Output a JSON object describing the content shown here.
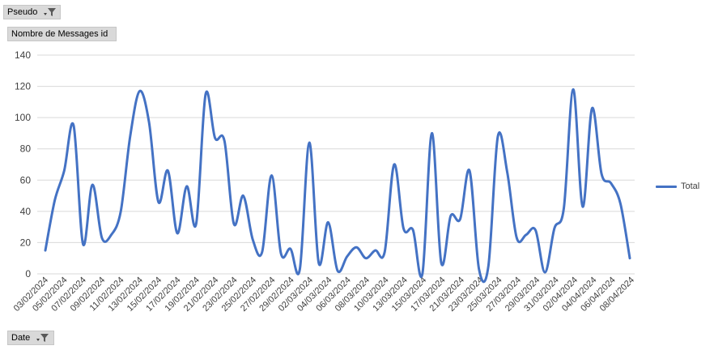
{
  "filters": {
    "pseudo_label": "Pseudo",
    "measure_label": "Nombre de Messages id",
    "date_label": "Date"
  },
  "chart_data": {
    "type": "line",
    "title": "",
    "xlabel": "",
    "ylabel": "",
    "ylim": [
      0,
      140
    ],
    "yticks": [
      0,
      20,
      40,
      60,
      80,
      100,
      120,
      140
    ],
    "grid": true,
    "legend_position": "right",
    "line_color": "#4472c4",
    "x_tick_labels": [
      "03/02/2024",
      "05/02/2024",
      "07/02/2024",
      "09/02/2024",
      "11/02/2024",
      "13/02/2024",
      "15/02/2024",
      "17/02/2024",
      "19/02/2024",
      "21/02/2024",
      "23/02/2024",
      "25/02/2024",
      "27/02/2024",
      "29/02/2024",
      "02/03/2024",
      "04/03/2024",
      "06/03/2024",
      "08/03/2024",
      "10/03/2024",
      "13/03/2024",
      "15/03/2024",
      "17/03/2024",
      "21/03/2024",
      "23/03/2024",
      "25/03/2024",
      "27/03/2024",
      "29/03/2024",
      "31/03/2024",
      "02/04/2024",
      "04/04/2024",
      "06/04/2024",
      "08/04/2024"
    ],
    "series": [
      {
        "name": "Total",
        "values": [
          15,
          47,
          66,
          95,
          19,
          57,
          23,
          25,
          40,
          88,
          117,
          97,
          46,
          66,
          26,
          56,
          32,
          115,
          87,
          85,
          32,
          50,
          22,
          14,
          63,
          13,
          16,
          3,
          84,
          7,
          33,
          2,
          11,
          17,
          10,
          15,
          14,
          70,
          29,
          28,
          0,
          90,
          7,
          37,
          35,
          66,
          3,
          5,
          88,
          65,
          23,
          25,
          28,
          1,
          29,
          42,
          118,
          43,
          106,
          64,
          58,
          45,
          10
        ]
      }
    ]
  }
}
